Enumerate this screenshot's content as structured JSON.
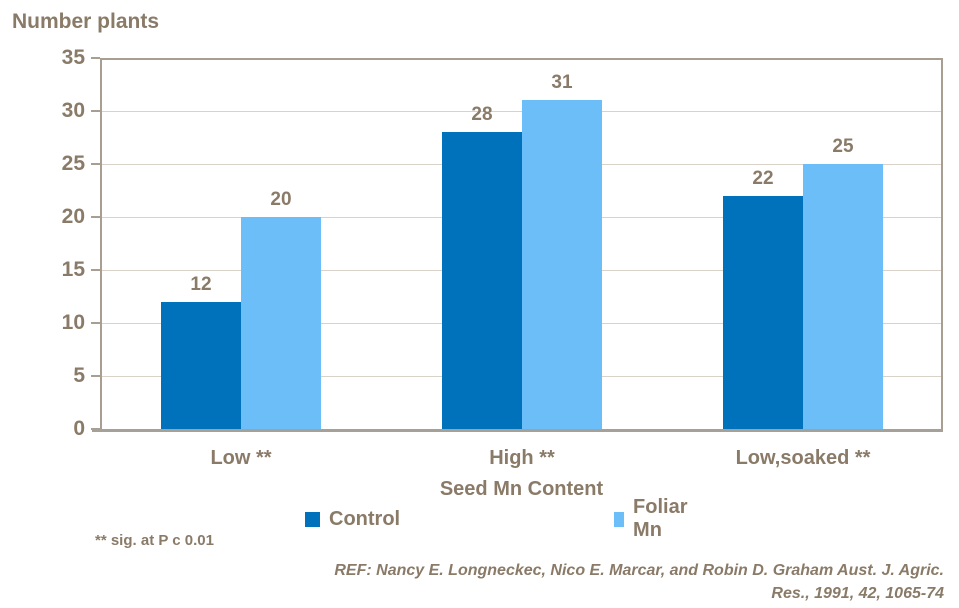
{
  "chart": {
    "title": "Number plants",
    "footnote": "** sig. at P c 0.01",
    "reference_line1": "REF: Nancy E. Longneckec, Nico E. Marcar, and Robin D. Graham Aust. J. Agric.",
    "reference_line2": "Res., 1991, 42, 1065-74"
  },
  "chart_data": {
    "type": "bar",
    "title": "Number plants",
    "categories": [
      "Low **",
      "High **",
      "Low,soaked **"
    ],
    "series": [
      {
        "name": "Control",
        "color": "#0072bc",
        "values": [
          12,
          28,
          22
        ]
      },
      {
        "name": "Foliar Mn",
        "color": "#6cbef9",
        "values": [
          20,
          31,
          25
        ]
      }
    ],
    "xlabel": "Seed Mn Content",
    "ylabel": "Number plants",
    "ylim": [
      0,
      35
    ],
    "yticks": [
      0,
      5,
      10,
      15,
      20,
      25,
      30,
      35
    ],
    "grid": true,
    "legend_position": "bottom",
    "data_labels": true,
    "annotations": [
      "** sig. at P c 0.01",
      "REF: Nancy E. Longneckec, Nico E. Marcar, and Robin D. Graham Aust. J. Agric. Res., 1991, 42, 1065-74"
    ],
    "style": {
      "text_color": "#8a7a68",
      "grid_color": "#d9d2c8",
      "axis_color": "#a89e91",
      "baseline_color": "#a5a098",
      "background": "#ffffff"
    }
  }
}
